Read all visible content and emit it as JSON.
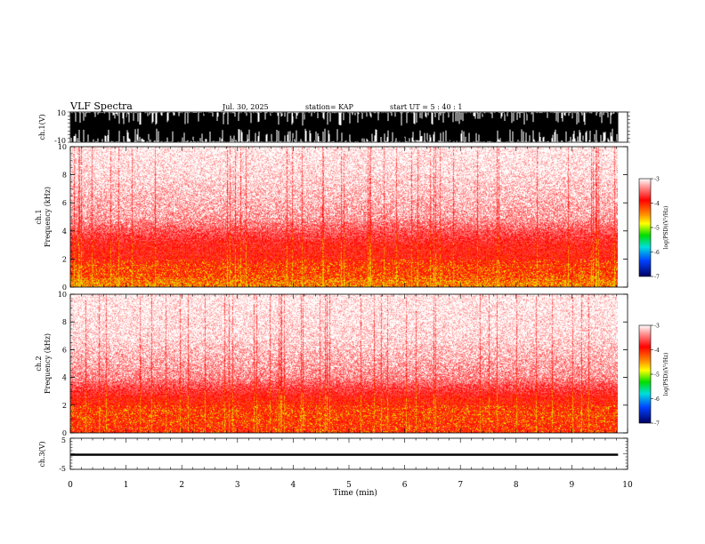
{
  "header": {
    "title": "VLF Spectra",
    "date": "Jul. 30, 2025",
    "station": "station= KAP",
    "start": "start  UT  =   5  : 40 : 1"
  },
  "chart_data": {
    "type": "heatmap",
    "title": "VLF Spectra",
    "xlabel": "Time  (min)",
    "x_ticks": [
      "0",
      "1",
      "2",
      "3",
      "4",
      "5",
      "6",
      "7",
      "8",
      "9",
      "10"
    ],
    "xlim": [
      0,
      10
    ],
    "data_end_min": 9.83,
    "panels": [
      {
        "id": "ch1-waveform",
        "type": "line",
        "ylabel": "ch.1(V)",
        "ylim": [
          -10,
          10
        ],
        "y_ticks": [
          "10",
          "-10"
        ],
        "description": "saturated waveform, clipped near +/-10 V"
      },
      {
        "id": "ch1-spectrogram",
        "type": "heatmap",
        "ylabel": "ch.1\nFrequency  (kHz)",
        "ylim": [
          0,
          10
        ],
        "y_ticks": [
          "0",
          "2",
          "4",
          "6",
          "8",
          "10"
        ],
        "colorbar": {
          "label": "log(PSD)(V²/Hz)",
          "range": [
            -7,
            -3
          ],
          "ticks": [
            "-3",
            "-4",
            "-5",
            "-6",
            "-7"
          ]
        },
        "intensity_profile": [
          {
            "freq_khz": 0.3,
            "log_psd": -3.3
          },
          {
            "freq_khz": 1.0,
            "log_psd": -3.6
          },
          {
            "freq_khz": 1.5,
            "log_psd": -3.6
          },
          {
            "freq_khz": 2.0,
            "log_psd": -3.8
          },
          {
            "freq_khz": 3.0,
            "log_psd": -3.9
          },
          {
            "freq_khz": 5.0,
            "log_psd": -4.6
          },
          {
            "freq_khz": 8.0,
            "log_psd": -4.9
          },
          {
            "freq_khz": 10.0,
            "log_psd": -5.0
          }
        ]
      },
      {
        "id": "ch2-spectrogram",
        "type": "heatmap",
        "ylabel": "ch.2\nFrequency  (kHz)",
        "ylim": [
          0,
          10
        ],
        "y_ticks": [
          "0",
          "2",
          "4",
          "6",
          "8",
          "10"
        ],
        "colorbar": {
          "label": "log(PSD)(V²/Hz)",
          "range": [
            -7,
            -3
          ],
          "ticks": [
            "-3",
            "-4",
            "-5",
            "-6",
            "-7"
          ]
        },
        "intensity_profile": [
          {
            "freq_khz": 0.5,
            "log_psd": -3.7
          },
          {
            "freq_khz": 1.0,
            "log_psd": -3.6
          },
          {
            "freq_khz": 1.5,
            "log_psd": -3.6
          },
          {
            "freq_khz": 2.5,
            "log_psd": -3.8
          },
          {
            "freq_khz": 4.0,
            "log_psd": -4.5
          },
          {
            "freq_khz": 7.0,
            "log_psd": -4.9
          },
          {
            "freq_khz": 10.0,
            "log_psd": -5.0
          }
        ]
      },
      {
        "id": "ch3-waveform",
        "type": "line",
        "ylabel": "ch.3(V)",
        "ylim": [
          -5,
          5
        ],
        "y_ticks": [
          "5",
          "0",
          "-5"
        ],
        "band_center_v": -0.3,
        "band_halfwidth_v": 0.35
      }
    ]
  },
  "colors": {
    "axis": "#000000",
    "colormap": [
      "#ff0000",
      "#ff5500",
      "#ffcc00",
      "#ffff00",
      "#00dd00",
      "#00dddd",
      "#0040ff",
      "#000080"
    ]
  }
}
